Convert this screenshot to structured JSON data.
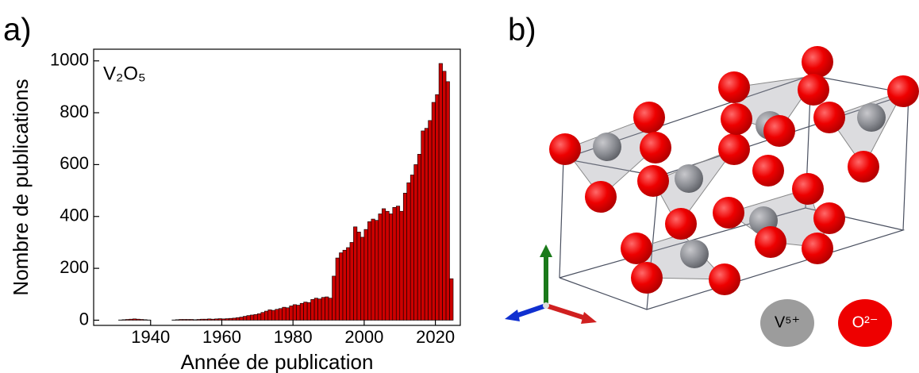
{
  "panels": {
    "a": "a)",
    "b": "b)"
  },
  "chart_data": {
    "type": "histogram",
    "annotation": "V₂O₅",
    "x_label": "Année de publication",
    "y_label": "Nombre de publications",
    "color": "#cc0000",
    "bins": [
      1924,
      1925,
      1926,
      1927,
      1928,
      1929,
      1930,
      1931,
      1932,
      1933,
      1934,
      1935,
      1936,
      1937,
      1938,
      1939,
      1940,
      1941,
      1942,
      1943,
      1944,
      1945,
      1946,
      1947,
      1948,
      1949,
      1950,
      1951,
      1952,
      1953,
      1954,
      1955,
      1956,
      1957,
      1958,
      1959,
      1960,
      1961,
      1962,
      1963,
      1964,
      1965,
      1966,
      1967,
      1968,
      1969,
      1970,
      1971,
      1972,
      1973,
      1974,
      1975,
      1976,
      1977,
      1978,
      1979,
      1980,
      1981,
      1982,
      1983,
      1984,
      1985,
      1986,
      1987,
      1988,
      1989,
      1990,
      1991,
      1992,
      1993,
      1994,
      1995,
      1996,
      1997,
      1998,
      1999,
      2000,
      2001,
      2002,
      2003,
      2004,
      2005,
      2006,
      2007,
      2008,
      2009,
      2010,
      2011,
      2012,
      2013,
      2014,
      2015,
      2016,
      2017,
      2018,
      2019,
      2020,
      2021,
      2022,
      2023,
      2024,
      2025
    ],
    "counts": [
      0,
      0,
      0,
      0,
      0,
      0,
      0,
      1,
      2,
      3,
      4,
      5,
      4,
      3,
      2,
      1,
      0,
      0,
      0,
      0,
      0,
      0,
      1,
      2,
      3,
      3,
      3,
      3,
      2,
      3,
      4,
      4,
      5,
      4,
      5,
      6,
      5,
      6,
      7,
      8,
      10,
      12,
      15,
      18,
      20,
      22,
      25,
      30,
      35,
      40,
      38,
      42,
      45,
      50,
      48,
      55,
      60,
      58,
      65,
      70,
      68,
      80,
      85,
      82,
      88,
      90,
      85,
      170,
      240,
      260,
      270,
      280,
      300,
      360,
      340,
      320,
      350,
      380,
      390,
      385,
      410,
      430,
      420,
      410,
      435,
      440,
      420,
      490,
      530,
      560,
      600,
      640,
      730,
      740,
      770,
      840,
      870,
      990,
      960,
      920,
      160
    ],
    "xlim": [
      1924,
      2027
    ],
    "ylim": [
      -20,
      1045
    ],
    "xticks": [
      1940,
      1960,
      1980,
      2000,
      2020
    ],
    "yticks": [
      0,
      200,
      400,
      600,
      800,
      1000
    ]
  },
  "structure_legend": [
    "V⁵⁺",
    "O²⁻"
  ]
}
